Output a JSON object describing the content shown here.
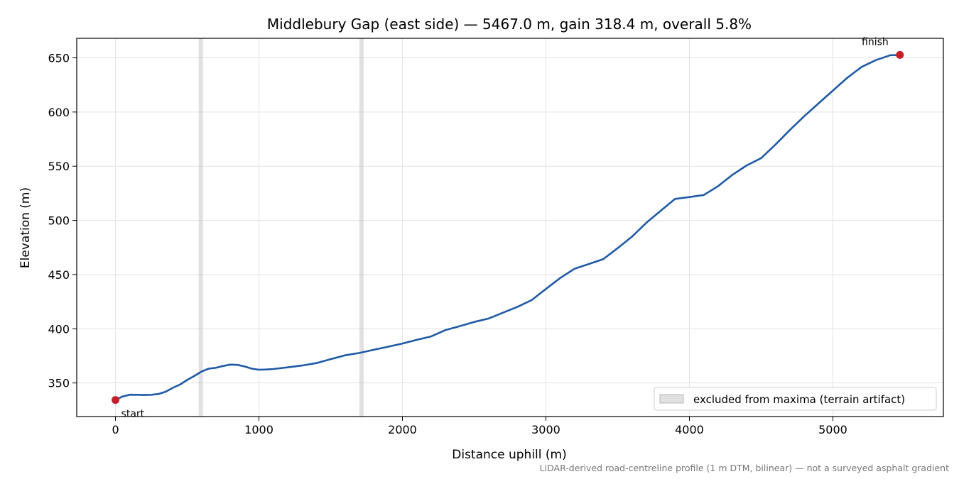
{
  "chart_data": {
    "type": "line",
    "title": "Middlebury Gap (east side) — 5467.0 m, gain 318.4 m, overall 5.8%",
    "xlabel": "Distance uphill (m)",
    "ylabel": "Elevation (m)",
    "xlim": [
      -270,
      5770
    ],
    "ylim": [
      319,
      668
    ],
    "x_ticks": [
      0,
      1000,
      2000,
      3000,
      4000,
      5000
    ],
    "x_tick_labels": [
      "0",
      "1000",
      "2000",
      "3000",
      "4000",
      "5000"
    ],
    "y_ticks": [
      350,
      400,
      450,
      500,
      550,
      600,
      650
    ],
    "y_tick_labels": [
      "350",
      "400",
      "450",
      "500",
      "550",
      "600",
      "650"
    ],
    "grid": true,
    "line_color": "#1f5aa6",
    "series": [
      {
        "name": "",
        "x": [
          0,
          50,
          100,
          150,
          200,
          250,
          300,
          350,
          400,
          450,
          500,
          550,
          600,
          650,
          700,
          750,
          800,
          850,
          900,
          950,
          1000,
          1050,
          1100,
          1200,
          1300,
          1400,
          1500,
          1600,
          1700,
          1800,
          1900,
          2000,
          2100,
          2200,
          2300,
          2400,
          2500,
          2600,
          2700,
          2800,
          2900,
          3000,
          3100,
          3200,
          3300,
          3400,
          3500,
          3600,
          3700,
          3800,
          3900,
          4000,
          4100,
          4200,
          4300,
          4400,
          4500,
          4600,
          4700,
          4800,
          4900,
          5000,
          5100,
          5200,
          5300,
          5400,
          5467
        ],
        "y": [
          334.3,
          337.5,
          339.2,
          339.1,
          338.9,
          339.1,
          339.8,
          341.9,
          345.5,
          348.5,
          352.8,
          356.5,
          360.5,
          363.2,
          364.0,
          365.6,
          366.9,
          366.7,
          365.2,
          363.2,
          362.2,
          362.4,
          362.9,
          364.4,
          366.1,
          368.3,
          372.0,
          375.5,
          377.7,
          380.6,
          383.4,
          386.4,
          389.8,
          392.9,
          398.8,
          402.4,
          406.3,
          409.4,
          414.8,
          420.1,
          426.4,
          436.7,
          446.9,
          455.4,
          459.8,
          464.3,
          474.4,
          485.0,
          497.8,
          508.9,
          519.8,
          521.5,
          523.4,
          531.6,
          542.1,
          550.8,
          557.5,
          570.0,
          583.4,
          596.1,
          608.0,
          619.8,
          631.6,
          641.6,
          647.9,
          652.4,
          652.7
        ]
      }
    ],
    "excluded_bands": [
      [
        580,
        610
      ],
      [
        1700,
        1730
      ]
    ],
    "band_color": "#bdbdbd",
    "markers": [
      {
        "x": 0,
        "y": 334.3,
        "label": "start"
      },
      {
        "x": 5467,
        "y": 652.7,
        "label": "finish"
      }
    ],
    "marker_color": "#c41e2b",
    "legend": {
      "position": "lower-right",
      "entries": [
        {
          "label": "excluded from maxima (terrain artifact)",
          "kind": "band"
        }
      ]
    },
    "footnote": "LiDAR-derived road-centreline profile (1 m DTM, bilinear) — not a surveyed asphalt gradient"
  }
}
